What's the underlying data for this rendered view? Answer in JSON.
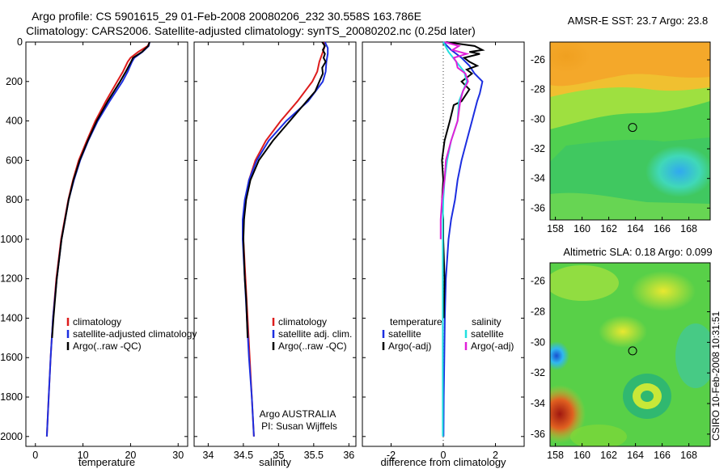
{
  "header": {
    "title_line1": "Argo profile: CS 5901615_29 01-Feb-2008 20080206_232 30.558S 163.786E",
    "title_line2": "Climatology: CARS2006. Satellite-adjusted climatology: synTS_20080202.nc (0.25d later)"
  },
  "side_credit": "CSIRO 10-Feb-2008 10:31:51",
  "colors": {
    "climatology": "#dd1c1c",
    "satellite": "#1c2ee0",
    "argo": "#000000",
    "satellite_salinity": "#22e0e0",
    "argo_salinity": "#e020d8"
  },
  "chart_data": [
    {
      "type": "line",
      "panel": "temperature",
      "xlabel": "temperature",
      "xlim": [
        -2,
        32
      ],
      "ylim": [
        2050,
        0
      ],
      "xticks": [
        "0",
        "10",
        "20",
        "30"
      ],
      "xtick_values": [
        0,
        10,
        20,
        30
      ],
      "yticks": [
        "0",
        "200",
        "400",
        "600",
        "800",
        "1000",
        "1200",
        "1400",
        "1600",
        "1800",
        "2000"
      ],
      "ytick_values": [
        0,
        200,
        400,
        600,
        800,
        1000,
        1200,
        1400,
        1600,
        1800,
        2000
      ],
      "legend": [
        "climatology",
        "satellite-adjusted climatology",
        "Argo(..raw -QC)"
      ],
      "series": [
        {
          "name": "climatology",
          "color": "#dd1c1c",
          "depth": [
            0,
            20,
            50,
            80,
            100,
            150,
            200,
            300,
            400,
            500,
            600,
            700,
            800,
            1000,
            1200,
            1400,
            1600,
            1800,
            2000
          ],
          "values": [
            24,
            23.6,
            21.6,
            20,
            19.4,
            18.4,
            17.2,
            14.8,
            12.6,
            10.8,
            9.1,
            7.9,
            6.9,
            5.4,
            4.4,
            3.7,
            3.2,
            2.8,
            2.4
          ]
        },
        {
          "name": "satellite-adjusted climatology",
          "color": "#1c2ee0",
          "depth": [
            0,
            20,
            50,
            80,
            100,
            150,
            200,
            300,
            400,
            500,
            600,
            700,
            800,
            1000,
            1200,
            1400,
            1600,
            1800,
            2000
          ],
          "values": [
            24,
            23.8,
            22.5,
            20.8,
            20.3,
            19.4,
            18.3,
            15.6,
            13.1,
            11.1,
            9.4,
            8.1,
            7.0,
            5.5,
            4.5,
            3.7,
            3.2,
            2.8,
            2.4
          ]
        },
        {
          "name": "Argo(..raw -QC)",
          "color": "#000000",
          "depth": [
            0,
            20,
            50,
            80,
            100,
            150,
            200,
            300,
            400,
            500,
            600,
            700,
            800,
            1000,
            1200,
            1400,
            1500
          ],
          "values": [
            24,
            23.7,
            22.4,
            20.5,
            20.1,
            19.0,
            17.8,
            15.2,
            12.9,
            11.0,
            9.3,
            8.0,
            7.0,
            5.5,
            4.5,
            3.8,
            3.5
          ]
        }
      ]
    },
    {
      "type": "line",
      "panel": "salinity",
      "xlabel": "salinity",
      "xlim": [
        33.8,
        36.1
      ],
      "ylim": [
        2050,
        0
      ],
      "xticks": [
        "34",
        "34.5",
        "35",
        "35.5",
        "36"
      ],
      "xtick_values": [
        34,
        34.5,
        35,
        35.5,
        36
      ],
      "legend": [
        "climatology",
        "satellite adj. clim.",
        "Argo(..raw -QC)"
      ],
      "annotation": [
        "Argo AUSTRALIA",
        "PI: Susan Wijffels"
      ],
      "series": [
        {
          "name": "climatology",
          "color": "#dd1c1c",
          "depth": [
            0,
            30,
            60,
            100,
            150,
            200,
            300,
            400,
            500,
            600,
            700,
            800,
            900,
            1000,
            1200,
            1400,
            1600,
            1800,
            2000
          ],
          "values": [
            35.65,
            35.65,
            35.62,
            35.58,
            35.55,
            35.48,
            35.27,
            35.03,
            34.82,
            34.67,
            34.58,
            34.53,
            34.5,
            34.5,
            34.53,
            34.56,
            34.59,
            34.62,
            34.65
          ]
        },
        {
          "name": "satellite adj. clim.",
          "color": "#1c2ee0",
          "depth": [
            0,
            30,
            60,
            100,
            150,
            200,
            300,
            400,
            500,
            600,
            700,
            800,
            900,
            1000,
            1200,
            1400,
            1600,
            1800,
            2000
          ],
          "values": [
            35.66,
            35.7,
            35.7,
            35.68,
            35.67,
            35.63,
            35.42,
            35.11,
            34.86,
            34.69,
            34.58,
            34.52,
            34.49,
            34.49,
            34.52,
            34.55,
            34.58,
            34.62,
            34.65
          ]
        },
        {
          "name": "Argo(..raw -QC)",
          "color": "#000000",
          "depth": [
            0,
            20,
            40,
            60,
            80,
            100,
            130,
            160,
            200,
            250,
            300,
            400,
            500,
            600,
            700,
            800,
            900,
            1000,
            1100,
            1200,
            1300,
            1400,
            1500
          ],
          "values": [
            35.62,
            35.66,
            35.63,
            35.66,
            35.64,
            35.67,
            35.62,
            35.63,
            35.58,
            35.52,
            35.4,
            35.16,
            34.92,
            34.72,
            34.6,
            34.54,
            34.51,
            34.5,
            34.51,
            34.52,
            34.54,
            34.55,
            34.56
          ]
        }
      ]
    },
    {
      "type": "line",
      "panel": "difference",
      "xlabel": "difference from climatology",
      "xlim": [
        -3.1,
        3.1
      ],
      "ylim": [
        2050,
        0
      ],
      "xticks": [
        "-2",
        "0",
        "2"
      ],
      "xtick_values": [
        -2,
        0,
        2
      ],
      "legend_groups": [
        {
          "title": "temperature",
          "items": [
            "satellite",
            "Argo(-adj)"
          ]
        },
        {
          "title": "salinity",
          "items": [
            "satellite",
            "Argo(-adj)"
          ]
        }
      ],
      "series": [
        {
          "name": "satellite",
          "group": "temperature",
          "color": "#1c2ee0",
          "depth": [
            0,
            40,
            80,
            120,
            160,
            200,
            260,
            300,
            400,
            500,
            600,
            700,
            800,
            900,
            1000,
            1200,
            1400,
            1600,
            1800,
            2000
          ],
          "values": [
            0,
            0.3,
            0.7,
            1.0,
            1.2,
            1.5,
            1.4,
            1.3,
            1.1,
            0.9,
            0.7,
            0.55,
            0.45,
            0.3,
            0.2,
            0.1,
            0.06,
            0.04,
            0.02,
            0.01
          ]
        },
        {
          "name": "Argo(-adj)",
          "group": "temperature",
          "color": "#000000",
          "depth": [
            0,
            20,
            40,
            50,
            60,
            80,
            100,
            120,
            140,
            160,
            200,
            240,
            300,
            320,
            400,
            500,
            600,
            700,
            800,
            900,
            1000,
            1200,
            1400
          ],
          "values": [
            0.1,
            1.2,
            1.5,
            1.0,
            1.4,
            0.8,
            1.0,
            1.3,
            0.9,
            1.1,
            0.7,
            1.0,
            0.7,
            0.4,
            0.25,
            0.05,
            -0.05,
            0.0,
            -0.05,
            0.0,
            0.0,
            0.05,
            0.02
          ]
        },
        {
          "name": "satellite",
          "group": "salinity",
          "color": "#22e0e0",
          "depth": [
            0,
            50,
            100,
            150,
            200,
            300,
            400,
            500,
            600,
            700,
            800,
            900,
            1000,
            1200,
            1400,
            1600,
            1800,
            2000
          ],
          "values": [
            0,
            0.2,
            0.5,
            0.8,
            0.9,
            0.6,
            0.55,
            0.3,
            0.15,
            0.05,
            0.0,
            -0.02,
            -0.02,
            -0.02,
            -0.02,
            -0.02,
            -0.02,
            -0.02
          ]
        },
        {
          "name": "Argo(-adj)",
          "group": "salinity",
          "color": "#e020d8",
          "depth": [
            0,
            20,
            40,
            60,
            80,
            100,
            130,
            160,
            200,
            250,
            300,
            400,
            500,
            600,
            700,
            800,
            900,
            1000
          ],
          "values": [
            0.05,
            0.6,
            0.35,
            0.9,
            0.4,
            0.5,
            0.55,
            0.85,
            0.95,
            0.75,
            0.65,
            0.55,
            0.3,
            0.1,
            0.05,
            -0.05,
            -0.1,
            -0.1
          ]
        }
      ]
    }
  ],
  "maps": [
    {
      "id": "sst",
      "title": "AMSR-E SST: 23.7 Argo: 23.8",
      "xlim": [
        157.6,
        169.6
      ],
      "ylim": [
        -36.8,
        -24.8
      ],
      "xticks": [
        "158",
        "160",
        "162",
        "164",
        "166",
        "168"
      ],
      "xtick_values": [
        158,
        160,
        162,
        164,
        166,
        168
      ],
      "yticks": [
        "-26",
        "-28",
        "-30",
        "-32",
        "-34",
        "-36"
      ],
      "ytick_values": [
        -26,
        -28,
        -30,
        -32,
        -34,
        -36
      ],
      "profile_marker": {
        "lon": 163.786,
        "lat": -30.558
      }
    },
    {
      "id": "sla",
      "title": "Altimetric SLA: 0.18 Argo: 0.099",
      "xlim": [
        157.6,
        169.6
      ],
      "ylim": [
        -36.8,
        -24.8
      ],
      "xticks": [
        "158",
        "160",
        "162",
        "164",
        "166",
        "168"
      ],
      "xtick_values": [
        158,
        160,
        162,
        164,
        166,
        168
      ],
      "yticks": [
        "-26",
        "-28",
        "-30",
        "-32",
        "-34",
        "-36"
      ],
      "ytick_values": [
        -26,
        -28,
        -30,
        -32,
        -34,
        -36
      ],
      "profile_marker": {
        "lon": 163.786,
        "lat": -30.558
      }
    }
  ]
}
